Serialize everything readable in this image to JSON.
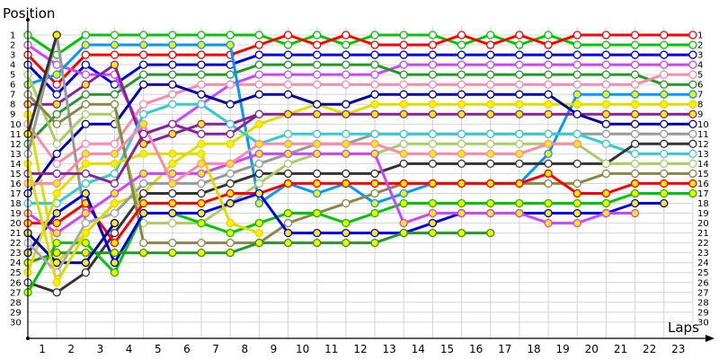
{
  "chart_data": {
    "type": "line",
    "title": "",
    "ylabel": "Position",
    "xlabel": "Laps",
    "x": [
      0,
      1,
      2,
      3,
      4,
      5,
      6,
      7,
      8,
      9,
      10,
      11,
      12,
      13,
      14,
      15,
      16,
      17,
      18,
      19,
      20,
      21,
      22,
      23
    ],
    "x_tick_labels": [
      "1",
      "2",
      "3",
      "4",
      "5",
      "6",
      "7",
      "8",
      "9",
      "10",
      "11",
      "12",
      "13",
      "14",
      "15",
      "16",
      "17",
      "18",
      "19",
      "20",
      "21",
      "22",
      "23"
    ],
    "y_tick_labels": [
      "1",
      "2",
      "3",
      "4",
      "5",
      "6",
      "7",
      "8",
      "9",
      "10",
      "11",
      "12",
      "13",
      "14",
      "15",
      "16",
      "17",
      "18",
      "19",
      "20",
      "21",
      "22",
      "23",
      "24",
      "25",
      "26",
      "27",
      "28",
      "29",
      "30"
    ],
    "right_labels": [
      "1",
      "2",
      "3",
      "4",
      "5",
      "6",
      "7",
      "8",
      "9",
      "10",
      "11",
      "12",
      "13",
      "14",
      "15",
      "16",
      "17"
    ],
    "ylim": [
      30,
      1
    ],
    "grid": true,
    "legend": "none",
    "series": [
      {
        "name": "green",
        "color": "#00c800",
        "fill": "white",
        "values": [
          1,
          3,
          1,
          1,
          1,
          1,
          1,
          1,
          1,
          2,
          1,
          2,
          1,
          1,
          1,
          2,
          1,
          2,
          1,
          2,
          2,
          2,
          2,
          2
        ]
      },
      {
        "name": "red",
        "color": "#ff0000",
        "fill": "white",
        "values": [
          3,
          6,
          3,
          3,
          3,
          3,
          3,
          3,
          2,
          1,
          2,
          1,
          2,
          2,
          2,
          1,
          2,
          1,
          2,
          1,
          1,
          1,
          1,
          1
        ]
      },
      {
        "name": "blue",
        "color": "#0000ee",
        "fill": "white",
        "values": [
          4,
          7,
          4,
          6,
          4,
          4,
          4,
          4,
          3,
          3,
          3,
          3,
          3,
          3,
          3,
          3,
          3,
          3,
          3,
          3,
          3,
          3,
          3,
          3
        ]
      },
      {
        "name": "violet",
        "color": "#cc44ff",
        "fill": "white",
        "values": [
          2,
          4,
          5,
          5,
          11,
          10,
          8,
          6,
          5,
          5,
          5,
          5,
          5,
          4,
          4,
          4,
          4,
          4,
          4,
          4,
          4,
          4,
          4,
          4
        ]
      },
      {
        "name": "darkgreen",
        "color": "#229922",
        "fill": "white",
        "values": [
          12,
          9,
          7,
          7,
          5,
          5,
          5,
          5,
          4,
          4,
          4,
          4,
          4,
          5,
          5,
          5,
          5,
          5,
          5,
          5,
          5,
          5,
          6,
          6
        ]
      },
      {
        "name": "pink",
        "color": "#ff88aa",
        "fill": "white",
        "values": [
          10,
          14,
          12,
          12,
          8,
          7,
          6,
          6,
          6,
          6,
          6,
          6,
          6,
          6,
          6,
          6,
          6,
          6,
          6,
          6,
          6,
          6,
          5,
          5
        ]
      },
      {
        "name": "skyblue",
        "color": "#0099ff",
        "fill": "yellow",
        "values": [
          6,
          5,
          2,
          2,
          2,
          2,
          2,
          2,
          18,
          16,
          17,
          16,
          18,
          17,
          16,
          16,
          16,
          16,
          13,
          7,
          7,
          7,
          7,
          7
        ]
      },
      {
        "name": "yellow",
        "color": "#dddd00",
        "fill": "yellow",
        "values": [
          9,
          24,
          21,
          18,
          17,
          14,
          12,
          12,
          10,
          9,
          8,
          9,
          8,
          8,
          8,
          8,
          8,
          8,
          8,
          8,
          8,
          8,
          8,
          8
        ]
      },
      {
        "name": "purple",
        "color": "#882299",
        "fill": "yellow",
        "values": [
          8,
          8,
          6,
          4,
          12,
          11,
          10,
          10,
          9,
          9,
          9,
          9,
          9,
          9,
          9,
          9,
          9,
          9,
          9,
          9,
          9,
          9,
          9,
          9
        ]
      },
      {
        "name": "navy",
        "color": "#0000aa",
        "fill": "white",
        "values": [
          17,
          13,
          10,
          10,
          6,
          6,
          7,
          8,
          7,
          7,
          8,
          8,
          7,
          7,
          7,
          7,
          7,
          7,
          7,
          9,
          10,
          10,
          10,
          10
        ]
      },
      {
        "name": "gray",
        "color": "#999999",
        "fill": "white",
        "values": [
          13,
          1,
          20,
          19,
          16,
          16,
          16,
          15,
          14,
          13,
          12,
          12,
          11,
          11,
          11,
          11,
          11,
          11,
          11,
          11,
          11,
          11,
          11,
          11
        ]
      },
      {
        "name": "cyan",
        "color": "#33cccc",
        "fill": "white",
        "values": [
          18,
          18,
          16,
          15,
          9,
          8,
          8,
          10,
          12,
          11,
          11,
          11,
          11,
          11,
          11,
          11,
          11,
          11,
          11,
          11,
          12,
          13,
          13,
          13
        ]
      },
      {
        "name": "black",
        "color": "#333333",
        "fill": "white",
        "values": [
          26,
          27,
          25,
          21,
          17,
          17,
          17,
          16,
          15,
          15,
          15,
          15,
          15,
          14,
          14,
          14,
          14,
          14,
          14,
          14,
          14,
          12,
          12,
          12
        ]
      },
      {
        "name": "lightgreen",
        "color": "#aacc66",
        "fill": "white",
        "values": [
          5,
          12,
          9,
          9,
          20,
          20,
          20,
          18,
          16,
          14,
          13,
          13,
          13,
          12,
          12,
          12,
          12,
          12,
          12,
          12,
          14,
          14,
          14,
          14
        ]
      },
      {
        "name": "olive",
        "color": "#888844",
        "fill": "white",
        "values": [
          7,
          10,
          8,
          8,
          22,
          22,
          22,
          22,
          22,
          20,
          19,
          18,
          17,
          16,
          16,
          16,
          16,
          16,
          16,
          16,
          15,
          15,
          15,
          15
        ]
      },
      {
        "name": "red2",
        "color": "#ff0000",
        "fill": "yellow",
        "values": [
          20,
          20,
          18,
          22,
          18,
          18,
          18,
          17,
          17,
          16,
          16,
          16,
          16,
          16,
          16,
          16,
          16,
          16,
          15,
          17,
          17,
          16,
          16,
          16
        ]
      },
      {
        "name": "green2",
        "color": "#00c800",
        "fill": "yellow",
        "values": [
          27,
          22,
          22,
          25,
          19,
          19,
          20,
          21,
          20,
          19,
          19,
          20,
          19,
          18,
          18,
          18,
          18,
          18,
          18,
          18,
          18,
          17,
          17,
          17
        ]
      },
      {
        "name": "blue2",
        "color": "#0000ee",
        "fill": "yellow",
        "values": [
          23,
          19,
          17,
          24,
          19,
          19,
          19,
          18,
          17,
          21,
          21,
          21,
          21,
          21,
          20,
          19,
          19,
          19,
          19,
          19,
          19,
          18,
          18,
          null
        ]
      },
      {
        "name": "violet2",
        "color": "#cc44ff",
        "fill": "yellow",
        "values": [
          19,
          21,
          19,
          17,
          15,
          15,
          15,
          14,
          13,
          13,
          13,
          13,
          13,
          20,
          19,
          19,
          19,
          19,
          20,
          20,
          19,
          19,
          null,
          null
        ]
      },
      {
        "name": "darkgreen2",
        "color": "#229922",
        "fill": "yellow",
        "values": [
          24,
          23,
          23,
          23,
          23,
          23,
          23,
          23,
          22,
          22,
          22,
          22,
          22,
          21,
          21,
          21,
          21,
          null,
          null,
          null,
          null,
          null,
          null,
          null
        ]
      },
      {
        "name": "yellow2",
        "color": "#dddd00",
        "fill": "yellow",
        "values": [
          25,
          17,
          14,
          14,
          13,
          13,
          13,
          20,
          21,
          null,
          null,
          null,
          null,
          null,
          null,
          null,
          null,
          null,
          null,
          null,
          null,
          null,
          null,
          null
        ]
      },
      {
        "name": "darkblue2",
        "color": "#0000aa",
        "fill": "yellow",
        "values": [
          21,
          24,
          24,
          20,
          null,
          null,
          null,
          null,
          null,
          null,
          null,
          null,
          null,
          null,
          null,
          null,
          null,
          null,
          null,
          null,
          null,
          null,
          null,
          null
        ]
      },
      {
        "name": "pink2",
        "color": "#ff88aa",
        "fill": "yellow",
        "values": [
          16,
          16,
          13,
          13,
          10,
          16,
          14,
          14,
          12,
          12,
          12,
          12,
          12,
          13,
          13,
          13,
          13,
          13,
          12,
          12,
          null,
          null,
          null,
          null
        ]
      },
      {
        "name": "purple2",
        "color": "#882299",
        "fill": "white",
        "values": [
          15,
          15,
          15,
          16,
          11,
          10,
          11,
          11,
          9,
          null,
          null,
          null,
          null,
          null,
          null,
          null,
          null,
          null,
          null,
          null,
          null,
          null,
          null,
          null
        ]
      },
      {
        "name": "black2",
        "color": "#333333",
        "fill": "yellow",
        "values": [
          11,
          1,
          null,
          null,
          null,
          null,
          null,
          null,
          null,
          null,
          null,
          null,
          null,
          null,
          null,
          null,
          null,
          null,
          null,
          null,
          null,
          null,
          null,
          null
        ]
      },
      {
        "name": "lightgray2",
        "color": "#aaaaaa",
        "fill": "white",
        "values": [
          22,
          25,
          20,
          19,
          null,
          null,
          null,
          null,
          null,
          null,
          null,
          null,
          null,
          null,
          null,
          null,
          null,
          null,
          null,
          null,
          null,
          null,
          null,
          null
        ]
      },
      {
        "name": "yellow3",
        "color": "#dddd00",
        "fill": "yellow",
        "values": [
          14,
          26,
          21,
          18,
          null,
          null,
          null,
          null,
          null,
          null,
          null,
          null,
          null,
          null,
          null,
          null,
          null,
          null,
          null,
          null,
          null,
          null,
          null,
          null
        ]
      }
    ]
  },
  "labels": {
    "ylabel": "Position",
    "xlabel": "Laps"
  }
}
